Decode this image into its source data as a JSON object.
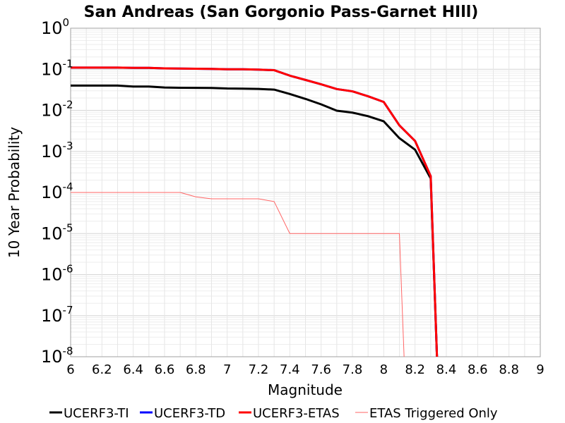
{
  "chart_data": {
    "type": "line",
    "title": "San Andreas (San Gorgonio Pass-Garnet HIll)",
    "xlabel": "Magnitude",
    "ylabel": "10 Year Probability",
    "xlim": [
      6,
      9
    ],
    "ylim": [
      1e-08,
      1
    ],
    "yscale": "log",
    "grid": true,
    "legend_position": "bottom",
    "x_ticks": [
      "6",
      "6.2",
      "6.4",
      "6.6",
      "6.8",
      "7",
      "7.2",
      "7.4",
      "7.6",
      "7.8",
      "8",
      "8.2",
      "8.4",
      "8.6",
      "8.8",
      "9"
    ],
    "y_ticks": [
      {
        "base": "10",
        "exp": "0"
      },
      {
        "base": "10",
        "exp": "-1"
      },
      {
        "base": "10",
        "exp": "-2"
      },
      {
        "base": "10",
        "exp": "-3"
      },
      {
        "base": "10",
        "exp": "-4"
      },
      {
        "base": "10",
        "exp": "-5"
      },
      {
        "base": "10",
        "exp": "-6"
      },
      {
        "base": "10",
        "exp": "-7"
      },
      {
        "base": "10",
        "exp": "-8"
      }
    ],
    "series": [
      {
        "name": "UCERF3-TI",
        "color": "#000000",
        "width": 3,
        "x": [
          6.0,
          6.1,
          6.2,
          6.3,
          6.4,
          6.5,
          6.6,
          6.7,
          6.8,
          6.9,
          7.0,
          7.1,
          7.2,
          7.3,
          7.4,
          7.5,
          7.6,
          7.7,
          7.8,
          7.9,
          8.0,
          8.1,
          8.2,
          8.3,
          8.34
        ],
        "y": [
          0.04,
          0.04,
          0.04,
          0.04,
          0.038,
          0.038,
          0.036,
          0.0355,
          0.0352,
          0.035,
          0.034,
          0.0338,
          0.0332,
          0.032,
          0.025,
          0.019,
          0.014,
          0.0098,
          0.0088,
          0.0072,
          0.0054,
          0.0021,
          0.0011,
          0.00022,
          1e-08
        ]
      },
      {
        "name": "UCERF3-TD",
        "color": "#0000ff",
        "width": 3,
        "x": [
          6.0,
          6.1,
          6.2,
          6.3,
          6.4,
          6.5,
          6.6,
          6.7,
          6.8,
          6.9,
          7.0,
          7.1,
          7.2,
          7.3,
          7.4,
          7.5,
          7.6,
          7.7,
          7.8,
          7.9,
          8.0,
          8.1,
          8.2,
          8.3,
          8.34
        ],
        "y": [
          0.11,
          0.11,
          0.11,
          0.11,
          0.108,
          0.108,
          0.105,
          0.104,
          0.103,
          0.102,
          0.1,
          0.1,
          0.098,
          0.095,
          0.07,
          0.055,
          0.043,
          0.033,
          0.029,
          0.022,
          0.016,
          0.0043,
          0.0018,
          0.00025,
          1e-08
        ]
      },
      {
        "name": "UCERF3-ETAS",
        "color": "#ff0000",
        "width": 3,
        "x": [
          6.0,
          6.1,
          6.2,
          6.3,
          6.4,
          6.5,
          6.6,
          6.7,
          6.8,
          6.9,
          7.0,
          7.1,
          7.2,
          7.3,
          7.4,
          7.5,
          7.6,
          7.7,
          7.8,
          7.9,
          8.0,
          8.1,
          8.2,
          8.3,
          8.34
        ],
        "y": [
          0.11,
          0.11,
          0.11,
          0.11,
          0.108,
          0.108,
          0.105,
          0.104,
          0.103,
          0.102,
          0.1,
          0.1,
          0.098,
          0.095,
          0.07,
          0.055,
          0.043,
          0.033,
          0.029,
          0.022,
          0.016,
          0.0043,
          0.0018,
          0.00025,
          1e-08
        ]
      },
      {
        "name": "ETAS Triggered Only",
        "color": "#ff6666",
        "width": 1,
        "x": [
          6.0,
          6.1,
          6.2,
          6.3,
          6.4,
          6.5,
          6.6,
          6.7,
          6.8,
          6.9,
          7.0,
          7.1,
          7.2,
          7.3,
          7.4,
          7.5,
          7.6,
          7.7,
          7.8,
          7.9,
          8.0,
          8.1,
          8.13
        ],
        "y": [
          0.0001,
          0.0001,
          0.0001,
          0.0001,
          0.0001,
          0.0001,
          0.0001,
          0.0001,
          7.8e-05,
          7e-05,
          7e-05,
          7e-05,
          7e-05,
          6e-05,
          1e-05,
          1e-05,
          1e-05,
          1e-05,
          1e-05,
          1e-05,
          1e-05,
          1e-05,
          1e-08
        ]
      }
    ]
  }
}
